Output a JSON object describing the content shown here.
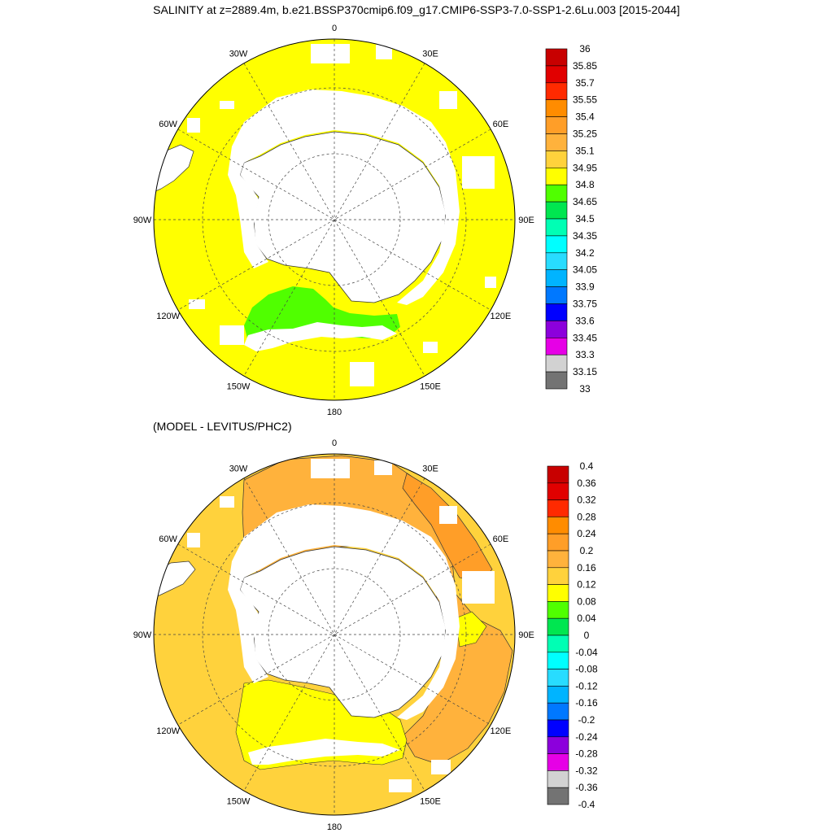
{
  "title": "SALINITY at z=2889.4m, b.e21.BSSP370cmip6.f09_g17.CMIP6-SSP3-7.0-SSP1-2.6Lu.003 [2015-2044]",
  "subtitle": "(MODEL - LEVITUS/PHC2)",
  "longitude_labels": [
    "0",
    "30E",
    "60E",
    "90E",
    "120E",
    "150E",
    "180",
    "150W",
    "120W",
    "90W",
    "60W",
    "30W"
  ],
  "colorbar_top": {
    "labels": [
      "36",
      "35.85",
      "35.7",
      "35.55",
      "35.4",
      "35.25",
      "35.1",
      "34.95",
      "34.8",
      "34.65",
      "34.5",
      "34.35",
      "34.2",
      "34.05",
      "33.9",
      "33.75",
      "33.6",
      "33.45",
      "33.3",
      "33.15",
      "33"
    ],
    "colors": [
      "#c80000",
      "#e10000",
      "#ff2a00",
      "#ff8c00",
      "#ff9e28",
      "#ffb23c",
      "#ffd23c",
      "#ffff00",
      "#50ff00",
      "#00e650",
      "#00ffb4",
      "#00ffff",
      "#28dcff",
      "#00b4ff",
      "#0078ff",
      "#0000ff",
      "#8c00dc",
      "#e600e6",
      "#d2d2d2",
      "#737373"
    ]
  },
  "colorbar_bottom": {
    "labels": [
      "0.4",
      "0.36",
      "0.32",
      "0.28",
      "0.24",
      "0.2",
      "0.16",
      "0.12",
      "0.08",
      "0.04",
      "0",
      "-0.04",
      "-0.08",
      "-0.12",
      "-0.16",
      "-0.2",
      "-0.24",
      "-0.28",
      "-0.32",
      "-0.36",
      "-0.4"
    ],
    "colors": [
      "#c80000",
      "#e10000",
      "#ff2a00",
      "#ff8c00",
      "#ff9e28",
      "#ffb23c",
      "#ffd23c",
      "#ffff00",
      "#50ff00",
      "#00e650",
      "#00ffb4",
      "#00ffff",
      "#28dcff",
      "#00b4ff",
      "#0078ff",
      "#0000ff",
      "#8c00dc",
      "#e600e6",
      "#d2d2d2",
      "#737373"
    ]
  },
  "map_colors": {
    "top_background": "#ffff00",
    "top_anomaly": "#50ff00",
    "bottom_background": "#ffd23c",
    "bottom_positive": "#ffb23c",
    "bottom_strong": "#ff9e28",
    "bottom_yellow": "#ffff00",
    "bottom_green": "#50ff00",
    "land": "#ffffff"
  }
}
